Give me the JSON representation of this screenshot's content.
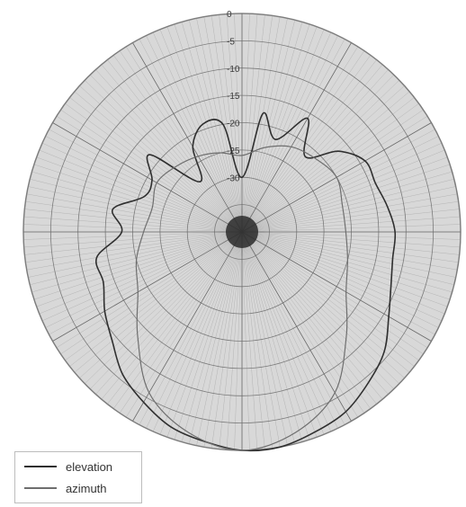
{
  "chart_data": {
    "type": "polar",
    "title": "",
    "radial_axis": {
      "tick_labels": [
        "0",
        "-5",
        "-10",
        "-15",
        "-20",
        "-25",
        "-30"
      ],
      "range_db": [
        -40,
        0
      ]
    },
    "angular_axis": {
      "range_deg": [
        0,
        360
      ],
      "zero_direction": "top",
      "direction": "clockwise"
    },
    "grid": true,
    "legend": {
      "position": "bottom-left"
    },
    "series": [
      {
        "name": "elevation",
        "color": "#2f2f2f",
        "theta_deg": [
          0,
          10,
          20,
          30,
          40,
          50,
          60,
          70,
          80,
          90,
          100,
          110,
          120,
          130,
          140,
          150,
          160,
          170,
          180,
          190,
          200,
          210,
          220,
          230,
          240,
          250,
          260,
          270,
          280,
          290,
          300,
          310,
          320,
          330,
          340,
          350
        ],
        "r_db": [
          -30,
          -18,
          -22,
          -16,
          -22,
          -17,
          -14,
          -14,
          -13,
          -12,
          -12,
          -11,
          -9,
          -6,
          -4,
          -2,
          -1,
          0,
          0,
          -1,
          -2,
          -4,
          -6,
          -9,
          -11,
          -13,
          -13,
          -18,
          -16,
          -21,
          -21,
          -18,
          -28,
          -22,
          -19,
          -20
        ]
      },
      {
        "name": "azimuth",
        "color": "#6e6e6e",
        "theta_deg": [
          0,
          15,
          30,
          45,
          60,
          75,
          90,
          105,
          120,
          135,
          150,
          165,
          180,
          195,
          210,
          225,
          240,
          255,
          270,
          285,
          300,
          315,
          330,
          345
        ],
        "r_db": [
          -26,
          -24,
          -22,
          -21,
          -20,
          -21,
          -21,
          -20,
          -18,
          -13,
          -6,
          -2,
          0,
          -2,
          -6,
          -13,
          -18,
          -20,
          -22,
          -23,
          -22,
          -23,
          -24,
          -25
        ]
      }
    ]
  }
}
